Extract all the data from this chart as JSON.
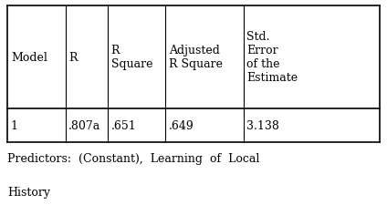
{
  "header_row": [
    "Model",
    "R",
    "R\nSquare",
    "Adjusted\nR Square",
    "Std.\nError\nof the\nEstimate"
  ],
  "data_row": [
    "1",
    ".807a",
    ".651",
    ".649",
    "3.138"
  ],
  "footer_line1": "Predictors:  (Constant),  Learning  of  Local",
  "footer_line2": "History",
  "col_props": [
    0.155,
    0.115,
    0.155,
    0.21,
    0.365
  ],
  "bg_color": "#ffffff",
  "text_color": "#000000",
  "font_size": 9,
  "footer_font_size": 9
}
